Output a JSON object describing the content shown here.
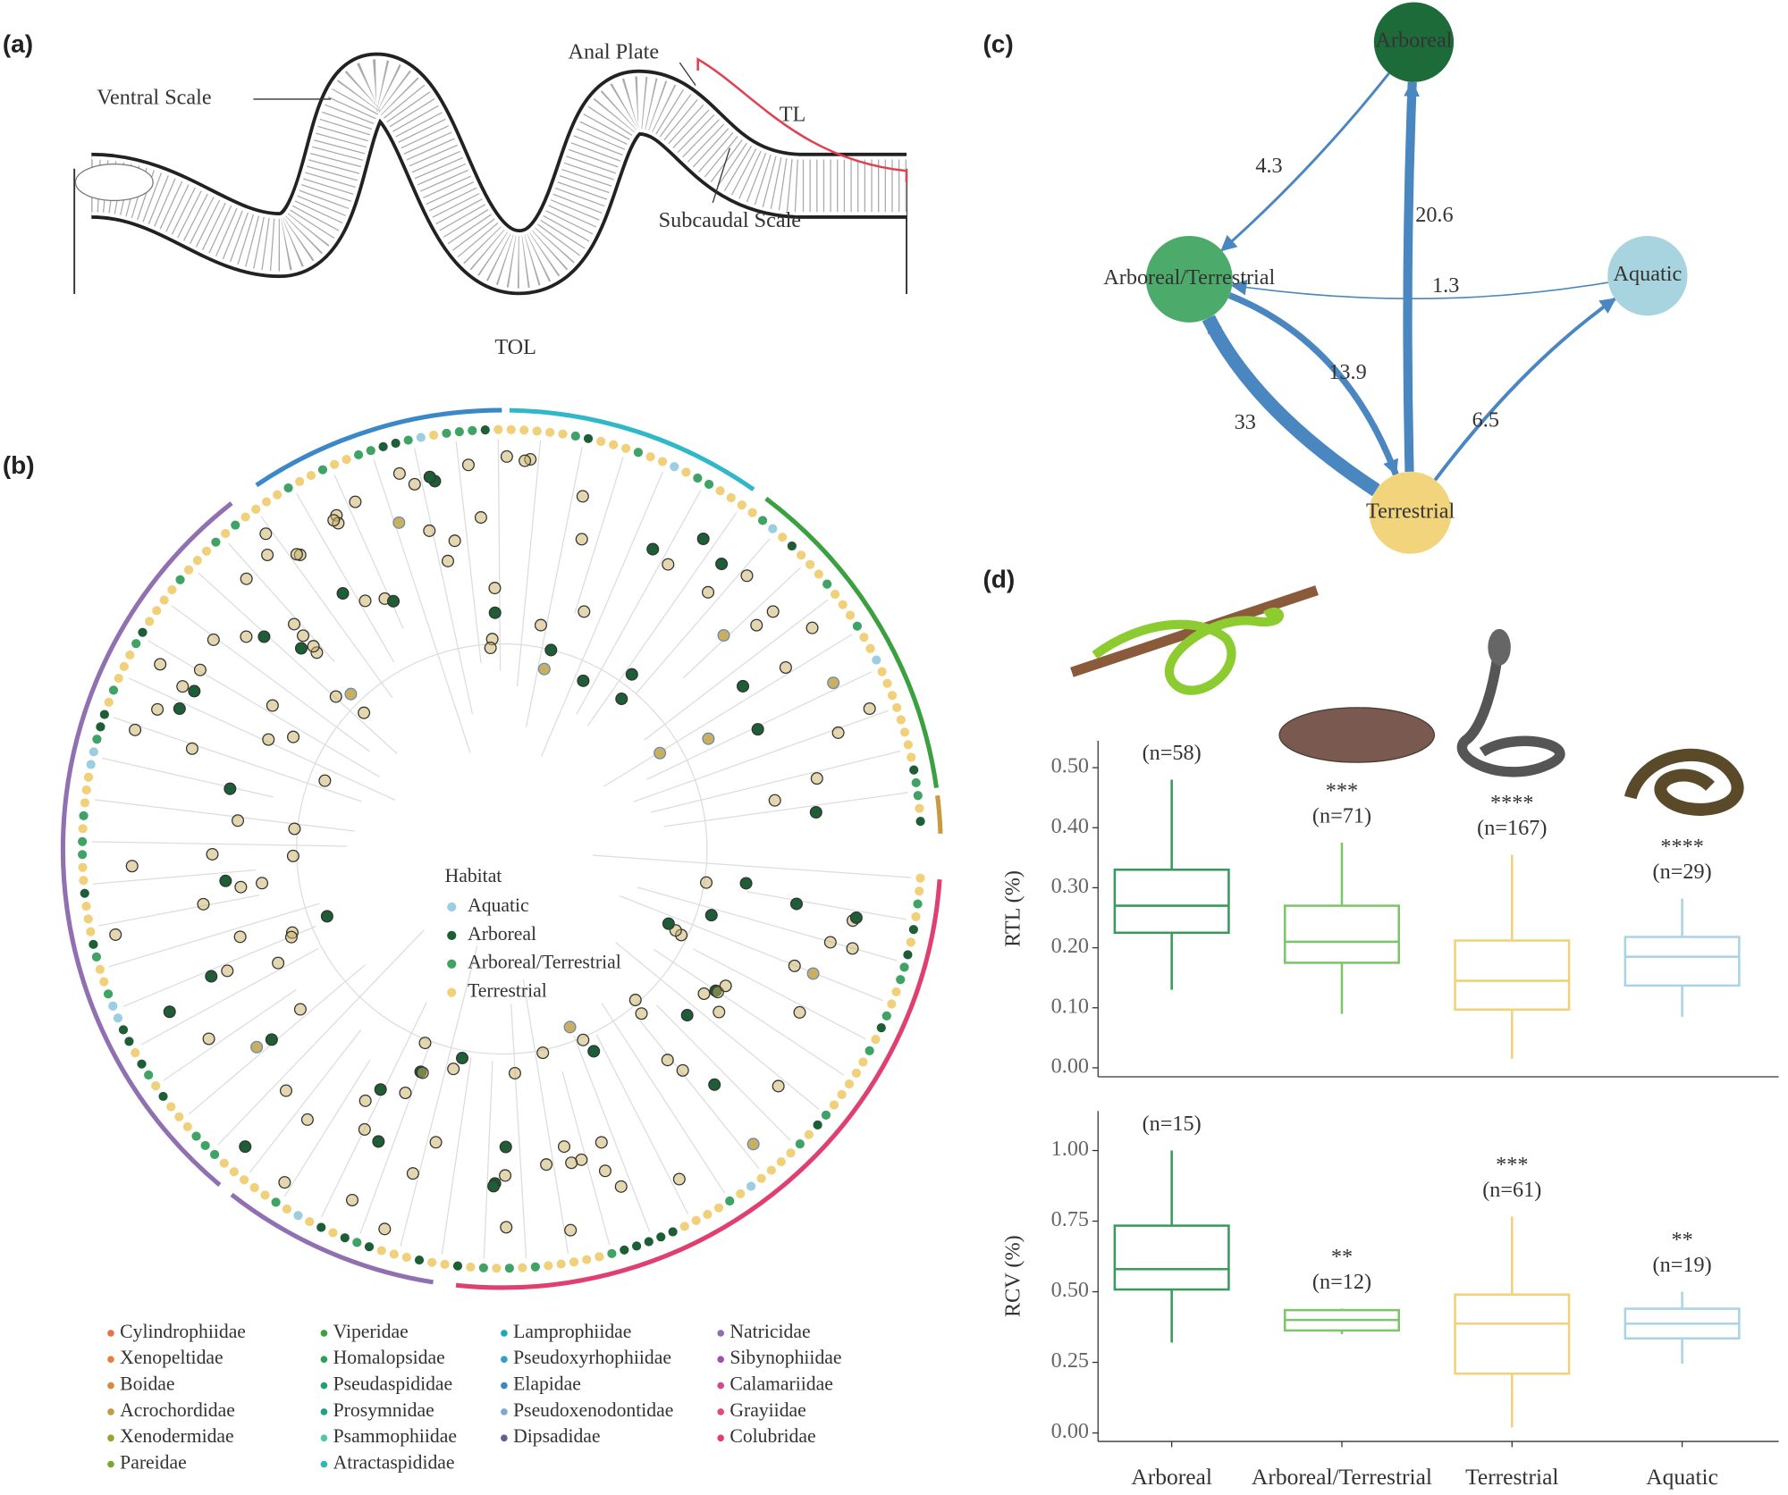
{
  "panel_labels": [
    "(a)",
    "(b)",
    "(c)",
    "(d)"
  ],
  "panel_a": {
    "labels": [
      "Ventral Scale",
      "Anal Plate",
      "TL",
      "Subcaudal Scale",
      "TOL"
    ]
  },
  "panel_b": {
    "legend_title": "Habitat",
    "habitats": [
      {
        "name": "Aquatic",
        "color": "#9ccde0"
      },
      {
        "name": "Arboreal",
        "color": "#1e5e36"
      },
      {
        "name": "Arboreal/Terrestrial",
        "color": "#3fa366"
      },
      {
        "name": "Terrestrial",
        "color": "#f0d07a"
      }
    ],
    "families": [
      {
        "name": "Cylindrophiidae",
        "color": "#e8734a"
      },
      {
        "name": "Xenopeltidae",
        "color": "#e8803a"
      },
      {
        "name": "Boidae",
        "color": "#d98a3a"
      },
      {
        "name": "Acrochordidae",
        "color": "#c89a40"
      },
      {
        "name": "Xenodermidae",
        "color": "#a0a030"
      },
      {
        "name": "Pareidae",
        "color": "#7aa830"
      },
      {
        "name": "Viperidae",
        "color": "#3aa040"
      },
      {
        "name": "Homalopsidae",
        "color": "#2aa058"
      },
      {
        "name": "Pseudaspididae",
        "color": "#20a070"
      },
      {
        "name": "Prosymnidae",
        "color": "#20a088"
      },
      {
        "name": "Psammophiidae",
        "color": "#50c8a8"
      },
      {
        "name": "Atractaspididae",
        "color": "#30b8b0"
      },
      {
        "name": "Lamprophiidae",
        "color": "#20a8b8"
      },
      {
        "name": "Pseudoxyrhophiidae",
        "color": "#30a0c8"
      },
      {
        "name": "Elapidae",
        "color": "#3a88c8"
      },
      {
        "name": "Pseudoxenodontidae",
        "color": "#80a8d0"
      },
      {
        "name": "Dipsadidae",
        "color": "#606090"
      },
      {
        "name": "Natricidae",
        "color": "#9070b0"
      },
      {
        "name": "Sibynophiidae",
        "color": "#a050b0"
      },
      {
        "name": "Calamariidae",
        "color": "#d04a90"
      },
      {
        "name": "Grayiidae",
        "color": "#e04a80"
      },
      {
        "name": "Colubridae",
        "color": "#e04070"
      }
    ]
  },
  "panel_c": {
    "type": "network",
    "nodes": [
      {
        "name": "Arboreal",
        "color": "#1e6b3a"
      },
      {
        "name": "Arboreal/Terrestrial",
        "color": "#4caa6a"
      },
      {
        "name": "Aquatic",
        "color": "#a8d4e0"
      },
      {
        "name": "Terrestrial",
        "color": "#f2d47c"
      }
    ],
    "edge_color": "#4a86c0",
    "edges": [
      {
        "from": 0,
        "to": 1,
        "value": 4.3
      },
      {
        "from": 3,
        "to": 0,
        "value": 20.6
      },
      {
        "from": 2,
        "to": 1,
        "value": 1.3
      },
      {
        "from": 1,
        "to": 3,
        "value": 13.9
      },
      {
        "from": 3,
        "to": 1,
        "value": 33
      },
      {
        "from": 3,
        "to": 2,
        "value": 6.5
      }
    ]
  },
  "chart_data": [
    {
      "type": "box",
      "ylabel": "RTL (%)",
      "categories": [
        "Arboreal",
        "Arboreal/Terrestrial",
        "Terrestrial",
        "Aquatic"
      ],
      "colors": [
        "#3a9a5c",
        "#7ec46a",
        "#f0d27a",
        "#a8d4e6"
      ],
      "boxes": [
        {
          "min": 0.13,
          "q1": 0.225,
          "median": 0.27,
          "q3": 0.33,
          "max": 0.48
        },
        {
          "min": 0.09,
          "q1": 0.175,
          "median": 0.21,
          "q3": 0.27,
          "max": 0.375
        },
        {
          "min": 0.015,
          "q1": 0.097,
          "median": 0.145,
          "q3": 0.212,
          "max": 0.355
        },
        {
          "min": 0.085,
          "q1": 0.137,
          "median": 0.185,
          "q3": 0.218,
          "max": 0.282
        }
      ],
      "significance": [
        null,
        "***",
        "****",
        "****"
      ],
      "n_labels": [
        "(n=58)",
        "(n=71)",
        "(n=167)",
        "(n=29)"
      ],
      "ylim": [
        -0.015,
        0.545
      ],
      "yticks": [
        {
          "value": 0,
          "label": "0.00"
        },
        {
          "value": 0.1,
          "label": "0.10"
        },
        {
          "value": 0.2,
          "label": "0.20"
        },
        {
          "value": 0.3,
          "label": "0.30"
        },
        {
          "value": 0.4,
          "label": "0.40"
        },
        {
          "value": 0.5,
          "label": "0.50"
        }
      ]
    },
    {
      "type": "box",
      "ylabel": "RCV (%)",
      "categories": [
        "Arboreal",
        "Arboreal/Terrestrial",
        "Terrestrial",
        "Aquatic"
      ],
      "colors": [
        "#3a9a5c",
        "#7ec46a",
        "#f0d27a",
        "#a8d4e6"
      ],
      "boxes": [
        {
          "min": 0.32,
          "q1": 0.508,
          "median": 0.58,
          "q3": 0.734,
          "max": 1.0
        },
        {
          "min": 0.35,
          "q1": 0.363,
          "median": 0.4,
          "q3": 0.435,
          "max": 0.44
        },
        {
          "min": 0.02,
          "q1": 0.21,
          "median": 0.387,
          "q3": 0.49,
          "max": 0.766
        },
        {
          "min": 0.245,
          "q1": 0.335,
          "median": 0.387,
          "q3": 0.44,
          "max": 0.5
        }
      ],
      "significance": [
        null,
        "**",
        "***",
        "**"
      ],
      "n_labels": [
        "(n=15)",
        "(n=12)",
        "(n=61)",
        "(n=19)"
      ],
      "ylim": [
        -0.03,
        1.14
      ],
      "yticks": [
        {
          "value": 0,
          "label": "0.00"
        },
        {
          "value": 0.25,
          "label": "0.25"
        },
        {
          "value": 0.5,
          "label": "0.50"
        },
        {
          "value": 0.75,
          "label": "0.75"
        },
        {
          "value": 1,
          "label": "1.00"
        }
      ]
    }
  ]
}
